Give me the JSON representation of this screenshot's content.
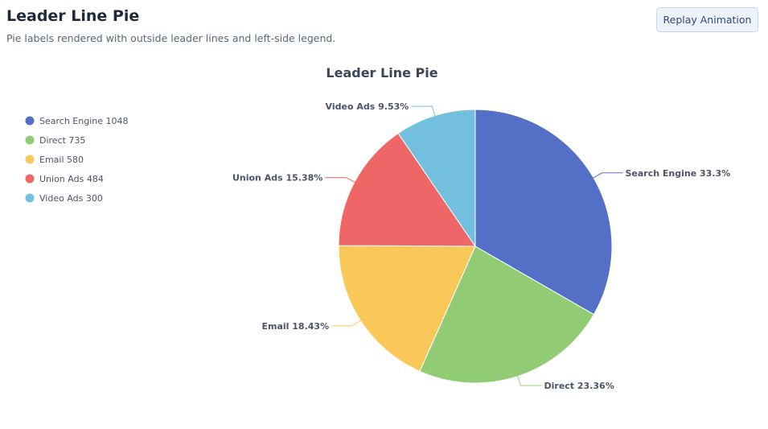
{
  "header": {
    "title": "Leader Line Pie",
    "subtitle": "Pie labels rendered with outside leader lines and left-side legend.",
    "replay_label": "Replay Animation"
  },
  "chart_data": {
    "type": "pie",
    "title": "Leader Line Pie",
    "legend_position": "left",
    "labels_position": "outside-with-leader-lines",
    "start_angle_deg": 90,
    "direction": "clockwise",
    "slices": [
      {
        "name": "Search Engine",
        "value": 1048,
        "percent_label": "33.3%",
        "color": "#5470c6"
      },
      {
        "name": "Direct",
        "value": 735,
        "percent_label": "23.36%",
        "color": "#91cc75"
      },
      {
        "name": "Email",
        "value": 580,
        "percent_label": "18.43%",
        "color": "#fac858"
      },
      {
        "name": "Union Ads",
        "value": 484,
        "percent_label": "15.38%",
        "color": "#ee6666"
      },
      {
        "name": "Video Ads",
        "value": 300,
        "percent_label": "9.53%",
        "color": "#73c0de"
      }
    ]
  }
}
